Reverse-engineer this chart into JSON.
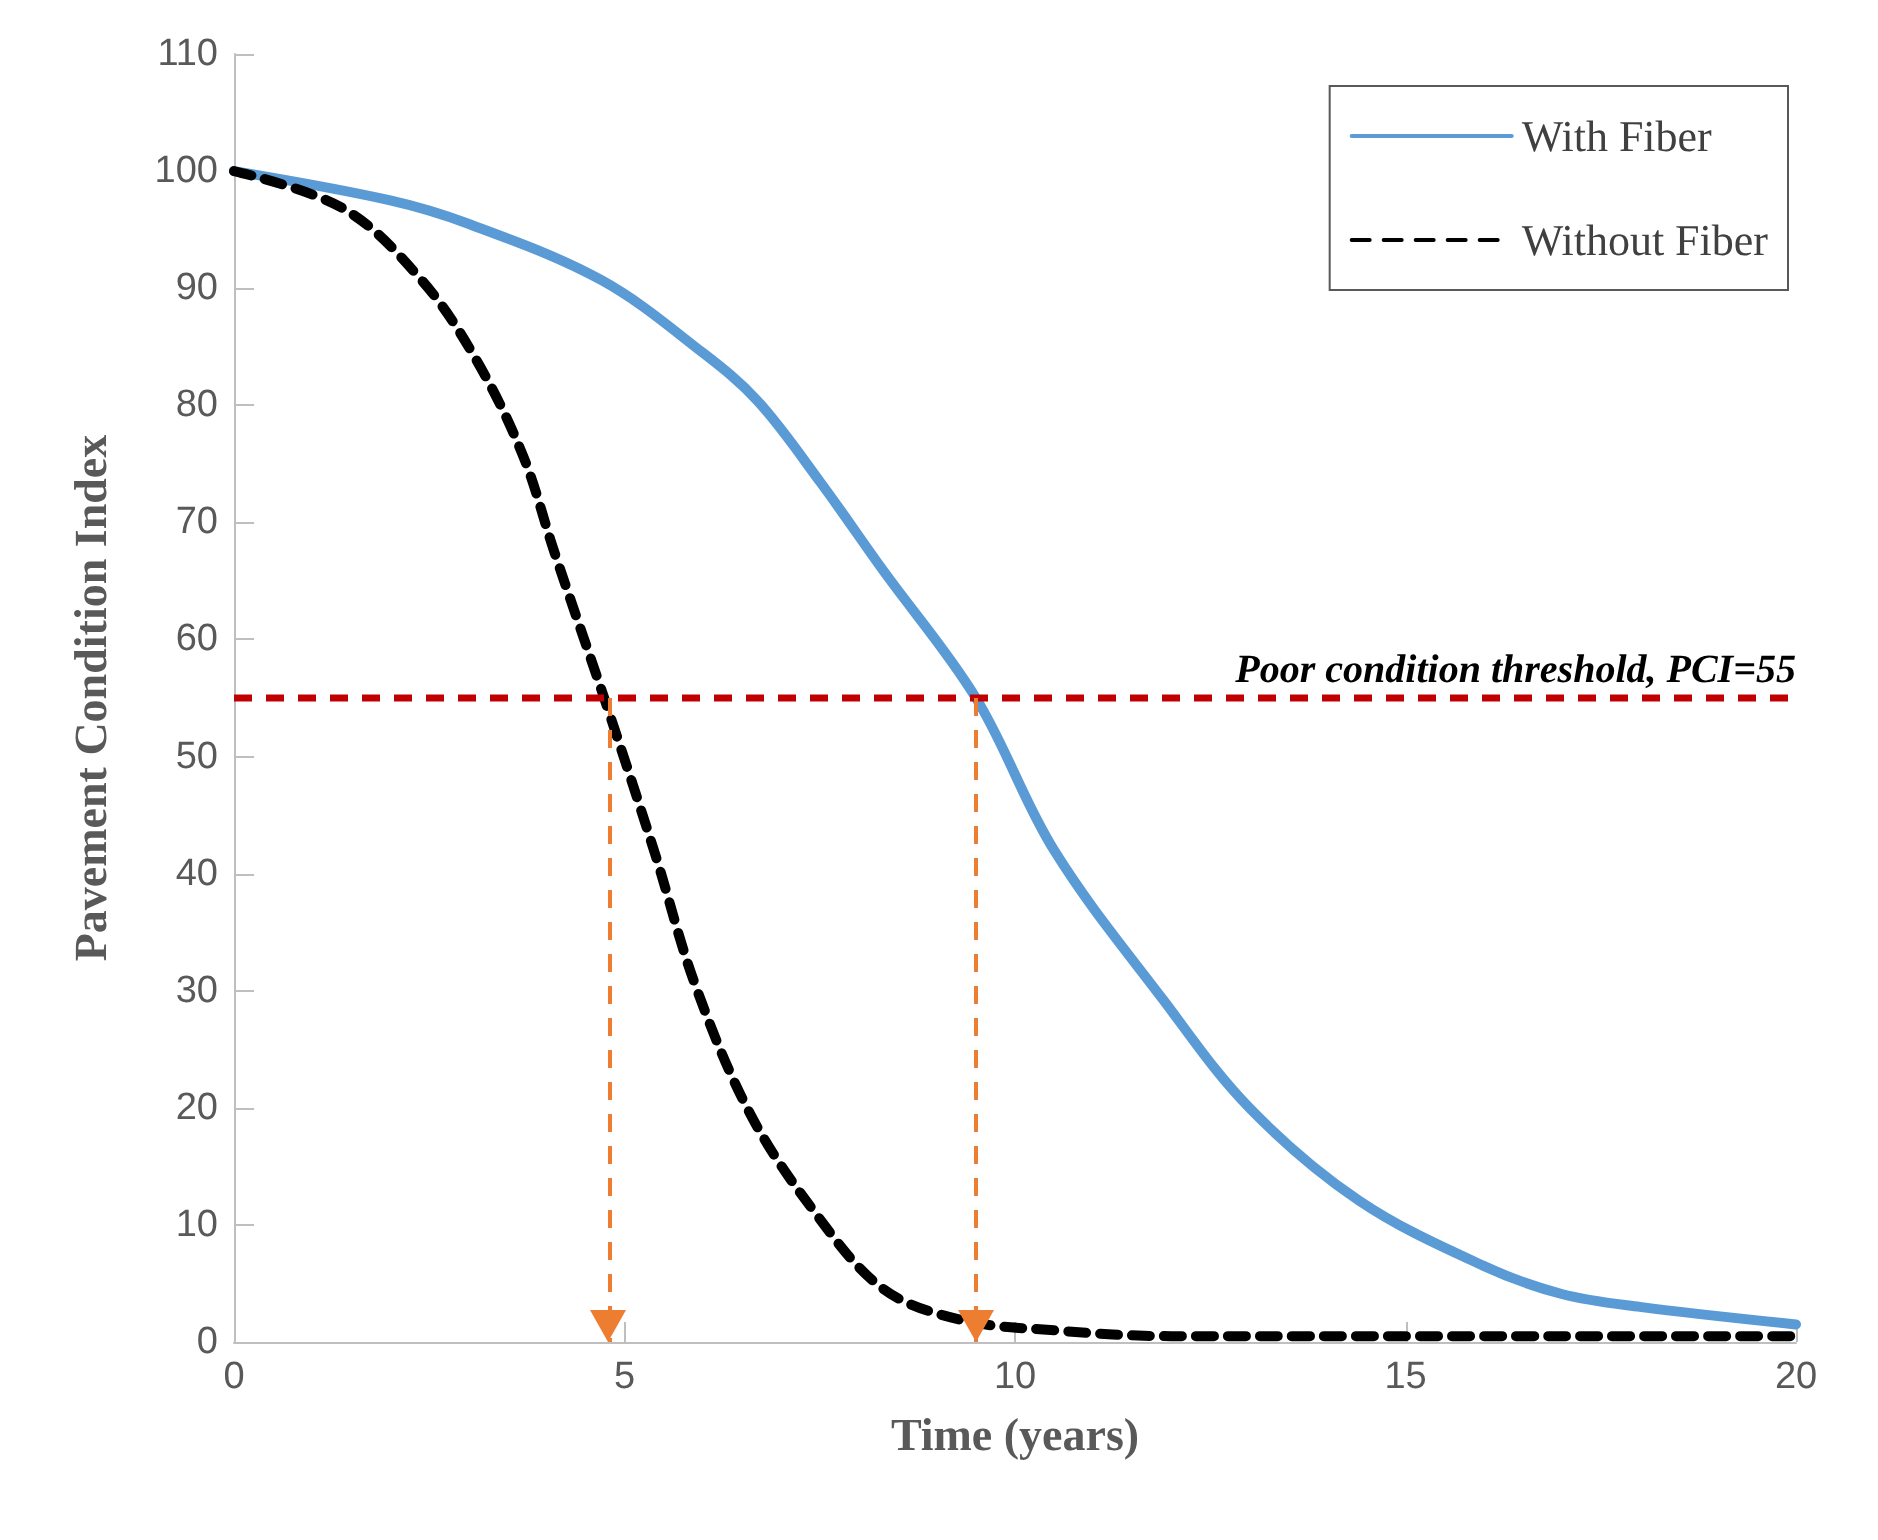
{
  "chart_data": {
    "type": "line",
    "xlabel": "Time (years)",
    "ylabel": "Pavement Condition Index",
    "xlim": [
      0,
      20
    ],
    "xticks": [
      0,
      5,
      10,
      15,
      20
    ],
    "ylim": [
      0,
      110
    ],
    "yticks": [
      0,
      10,
      20,
      30,
      40,
      50,
      60,
      70,
      80,
      90,
      100,
      110
    ],
    "grid": false,
    "legend": "top right",
    "marker": "none",
    "series": [
      {
        "name": "With Fiber",
        "color": "#5b9bd5",
        "line_style": "solid",
        "x": [
          0,
          2,
          3,
          4.7,
          6,
          6.7,
          7.5,
          8.3,
          9.5,
          10.5,
          11.9,
          13,
          14.4,
          16,
          17,
          18,
          20
        ],
        "values": [
          100,
          97.5,
          95.5,
          90.7,
          84.5,
          80.4,
          73.5,
          66,
          55,
          42,
          29.2,
          20,
          12.1,
          6.5,
          4.1,
          3,
          1.5
        ]
      },
      {
        "name": "Without Fiber",
        "color": "#000000",
        "line_style": "dashed",
        "x": [
          0,
          1.4,
          2.4,
          3.1,
          3.7,
          4.1,
          4.8,
          5.4,
          5.9,
          6.6,
          7.4,
          8.3,
          9.3,
          10.5,
          12,
          20
        ],
        "values": [
          100,
          96.8,
          90.7,
          83.9,
          75.7,
          67.5,
          53.8,
          41.5,
          30.6,
          19.6,
          11.4,
          4.6,
          1.9,
          1,
          0.5,
          0.5
        ]
      }
    ],
    "ref_lines": [
      {
        "axis": "y",
        "value": 55,
        "label": "Poor condition threshold, PCI=55",
        "color": "#c00000",
        "line_style": "dashed"
      },
      {
        "axis": "x",
        "value": 4.8,
        "label": null,
        "color": "#ed7d31",
        "line_style": "dashed"
      },
      {
        "axis": "x",
        "value": 9.5,
        "label": null,
        "color": "#ed7d31",
        "line_style": "dashed"
      }
    ]
  }
}
